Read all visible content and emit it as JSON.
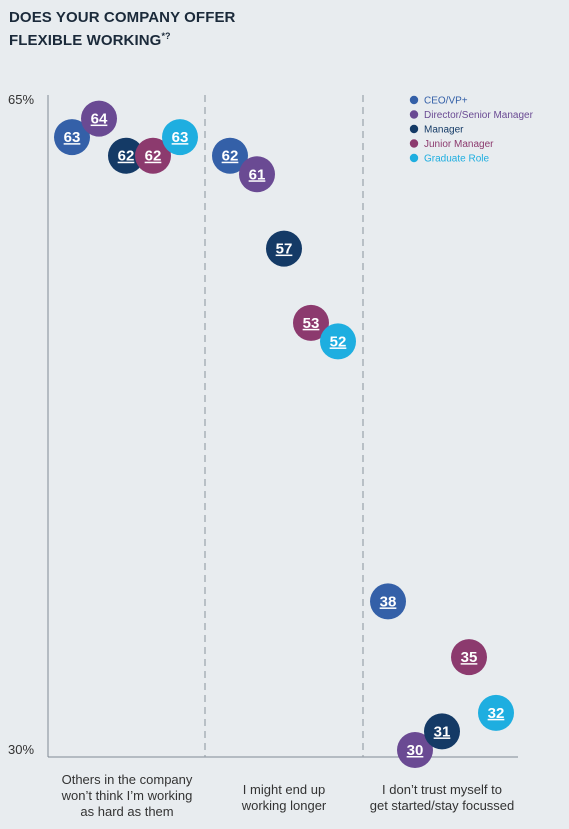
{
  "title_line1": "DOES YOUR COMPANY OFFER",
  "title_line2": "FLEXIBLE WORKING",
  "title_sup": "*?",
  "chart_data": {
    "type": "scatter",
    "ylim": [
      30,
      65
    ],
    "ytick_labels": [
      "65%",
      "30%"
    ],
    "grid": false,
    "legend_position": "top-right",
    "categories": [
      [
        "Others in the company",
        "won’t think I’m working",
        "as hard as them"
      ],
      [
        "I might end up",
        "working longer"
      ],
      [
        "I don’t trust myself to",
        "get started/stay focussed"
      ]
    ],
    "series": [
      {
        "name": "CEO/VP+",
        "color": "#3460a8",
        "values": [
          63,
          62,
          38
        ]
      },
      {
        "name": "Director/Senior Manager",
        "color": "#6a4a93",
        "values": [
          64,
          61,
          30
        ]
      },
      {
        "name": "Manager",
        "color": "#143a66",
        "values": [
          62,
          57,
          31
        ]
      },
      {
        "name": "Junior Manager",
        "color": "#8c3a6e",
        "values": [
          62,
          53,
          35
        ]
      },
      {
        "name": "Graduate Role",
        "color": "#1eaee0",
        "values": [
          63,
          52,
          32
        ]
      }
    ]
  }
}
